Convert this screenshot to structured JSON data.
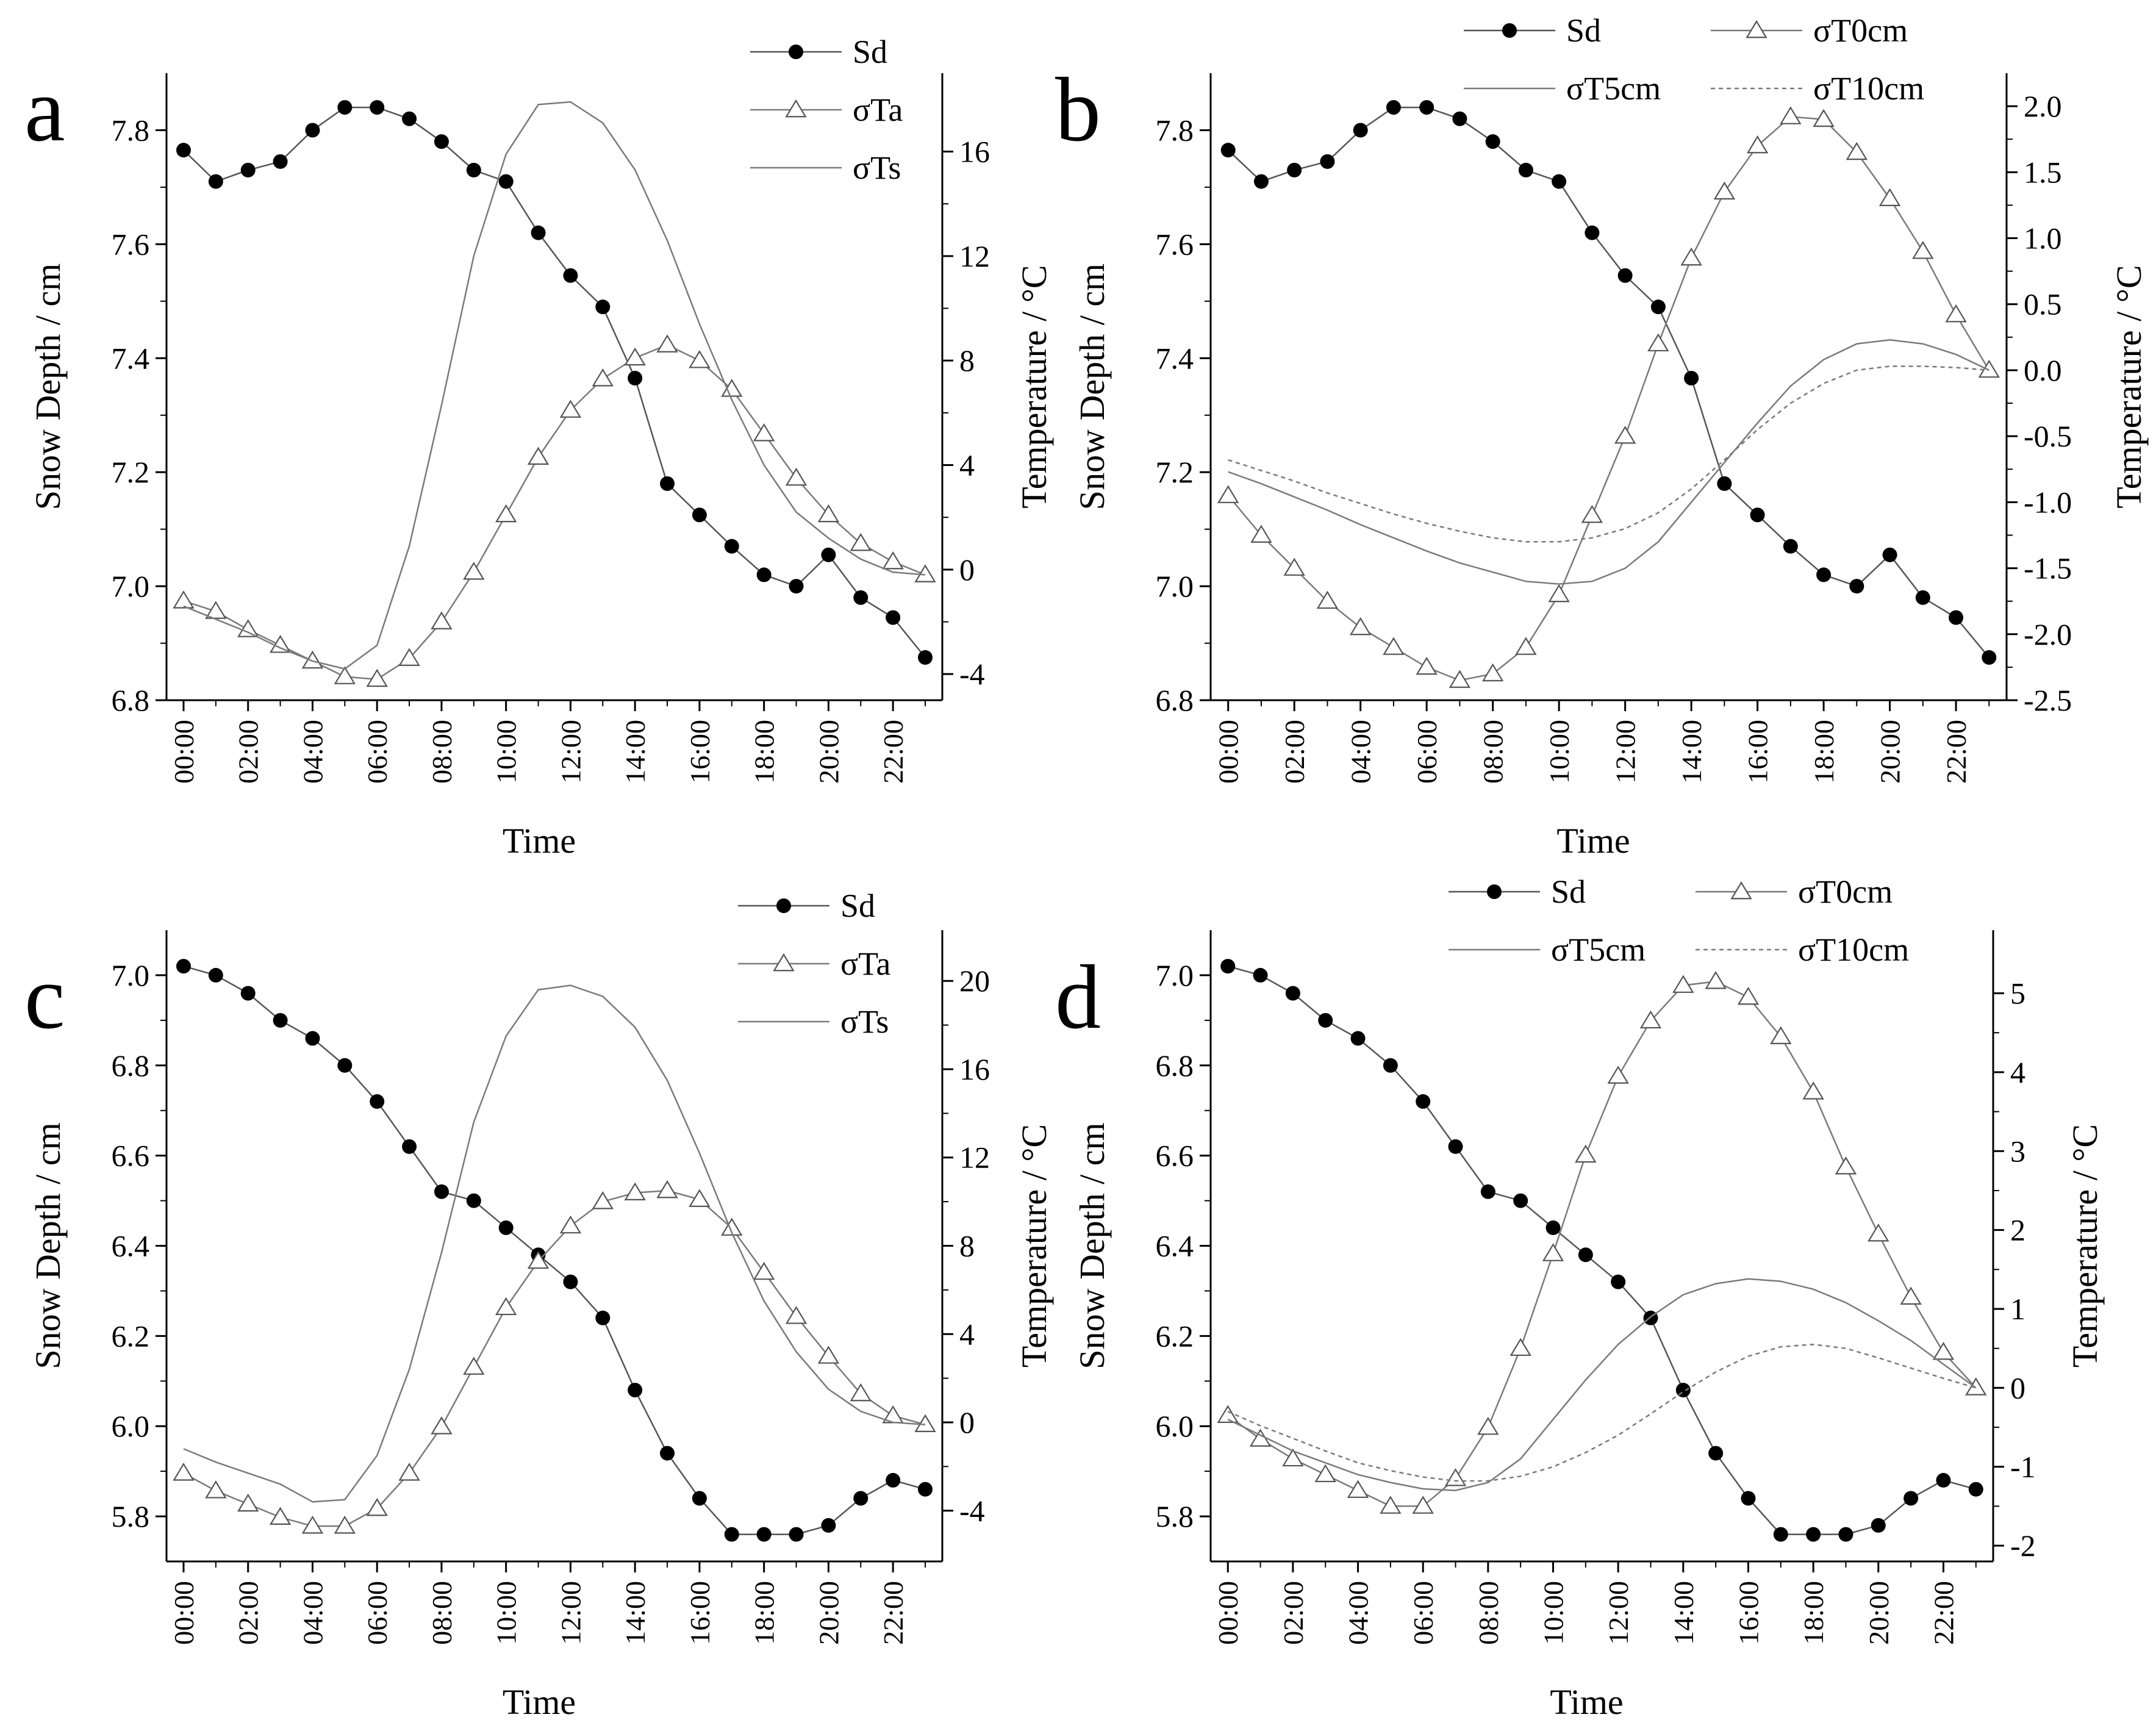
{
  "colors": {
    "axis": "#000000",
    "sd": "#000000",
    "temp_line": "#7a7a7a",
    "marker_fill": "#ffffff"
  },
  "chart_data": [
    {
      "panel": "a",
      "type": "line",
      "xlabel": "Time",
      "ylabel_left": "Snow Depth / cm",
      "ylabel_right": "Temperature / °C",
      "x_ticks": [
        "00:00",
        "02:00",
        "04:00",
        "06:00",
        "08:00",
        "10:00",
        "12:00",
        "14:00",
        "16:00",
        "18:00",
        "20:00",
        "22:00"
      ],
      "left_range": [
        6.8,
        7.9
      ],
      "left_ticks": [
        "6.8",
        "7.0",
        "7.2",
        "7.4",
        "7.6",
        "7.8"
      ],
      "right_range": [
        -5,
        19
      ],
      "right_ticks": [
        "-4",
        "0",
        "4",
        "8",
        "12",
        "16"
      ],
      "legend": [
        "Sd",
        "σTa",
        "σTs"
      ],
      "series": [
        {
          "name": "Sd",
          "axis": "left",
          "style": "dot",
          "values": [
            7.765,
            7.71,
            7.73,
            7.745,
            7.8,
            7.84,
            7.84,
            7.82,
            7.78,
            7.73,
            7.71,
            7.62,
            7.545,
            7.49,
            7.365,
            7.18,
            7.125,
            7.07,
            7.02,
            7.0,
            7.055,
            6.98,
            6.945,
            6.875
          ]
        },
        {
          "name": "σTa",
          "axis": "right",
          "style": "triangle",
          "values": [
            -1.2,
            -1.6,
            -2.3,
            -2.9,
            -3.5,
            -4.1,
            -4.2,
            -3.4,
            -2.0,
            -0.1,
            2.1,
            4.3,
            6.1,
            7.3,
            8.1,
            8.6,
            8.0,
            6.9,
            5.2,
            3.5,
            2.1,
            1.0,
            0.3,
            -0.2
          ]
        },
        {
          "name": "σTs",
          "axis": "right",
          "style": "line",
          "values": [
            -1.4,
            -1.9,
            -2.4,
            -3.0,
            -3.5,
            -3.8,
            -2.9,
            0.9,
            6.3,
            12.0,
            15.9,
            17.8,
            17.9,
            17.1,
            15.3,
            12.6,
            9.4,
            6.5,
            4.0,
            2.2,
            1.2,
            0.4,
            -0.1,
            -0.2
          ]
        }
      ]
    },
    {
      "panel": "b",
      "type": "line",
      "xlabel": "Time",
      "ylabel_left": "Snow Depth / cm",
      "ylabel_right": "Temperature / °C",
      "x_ticks": [
        "00:00",
        "02:00",
        "04:00",
        "06:00",
        "08:00",
        "10:00",
        "12:00",
        "14:00",
        "16:00",
        "18:00",
        "20:00",
        "22:00"
      ],
      "left_range": [
        6.8,
        7.9
      ],
      "left_ticks": [
        "6.8",
        "7.0",
        "7.2",
        "7.4",
        "7.6",
        "7.8"
      ],
      "right_range": [
        -2.5,
        2.25
      ],
      "right_ticks": [
        "-2.5",
        "-2.0",
        "-1.5",
        "-1.0",
        "-0.5",
        "0.0",
        "0.5",
        "1.0",
        "1.5",
        "2.0"
      ],
      "legend": [
        "Sd",
        "σT0cm",
        "σT5cm",
        "σT10cm"
      ],
      "series": [
        {
          "name": "Sd",
          "axis": "left",
          "style": "dot",
          "values": [
            7.765,
            7.71,
            7.73,
            7.745,
            7.8,
            7.84,
            7.84,
            7.82,
            7.78,
            7.73,
            7.71,
            7.62,
            7.545,
            7.49,
            7.365,
            7.18,
            7.125,
            7.07,
            7.02,
            7.0,
            7.055,
            6.98,
            6.945,
            6.875
          ]
        },
        {
          "name": "σT0cm",
          "axis": "right",
          "style": "triangle",
          "values": [
            -0.95,
            -1.25,
            -1.5,
            -1.75,
            -1.95,
            -2.1,
            -2.25,
            -2.35,
            -2.3,
            -2.1,
            -1.7,
            -1.1,
            -0.5,
            0.2,
            0.85,
            1.35,
            1.7,
            1.92,
            1.9,
            1.65,
            1.3,
            0.9,
            0.42,
            0.0
          ]
        },
        {
          "name": "σT5cm",
          "axis": "right",
          "style": "line",
          "values": [
            -0.77,
            -0.86,
            -0.96,
            -1.06,
            -1.17,
            -1.27,
            -1.37,
            -1.46,
            -1.53,
            -1.6,
            -1.62,
            -1.6,
            -1.5,
            -1.3,
            -1.0,
            -0.7,
            -0.4,
            -0.12,
            0.08,
            0.2,
            0.23,
            0.2,
            0.12,
            0.0
          ]
        },
        {
          "name": "σT10cm",
          "axis": "right",
          "style": "dashed",
          "values": [
            -0.68,
            -0.76,
            -0.84,
            -0.93,
            -1.01,
            -1.09,
            -1.16,
            -1.22,
            -1.27,
            -1.3,
            -1.3,
            -1.27,
            -1.2,
            -1.08,
            -0.9,
            -0.68,
            -0.45,
            -0.25,
            -0.1,
            0.0,
            0.03,
            0.03,
            0.02,
            0.0
          ]
        }
      ]
    },
    {
      "panel": "c",
      "type": "line",
      "xlabel": "Time",
      "ylabel_left": "Snow Depth / cm",
      "ylabel_right": "Temperature / °C",
      "x_ticks": [
        "00:00",
        "02:00",
        "04:00",
        "06:00",
        "08:00",
        "10:00",
        "12:00",
        "14:00",
        "16:00",
        "18:00",
        "20:00",
        "22:00"
      ],
      "left_range": [
        5.7,
        7.1
      ],
      "left_ticks": [
        "5.8",
        "6.0",
        "6.2",
        "6.4",
        "6.6",
        "6.8",
        "7.0"
      ],
      "right_range": [
        -6.3,
        22.3
      ],
      "right_ticks": [
        "-4",
        "0",
        "4",
        "8",
        "12",
        "16",
        "20"
      ],
      "legend": [
        "Sd",
        "σTa",
        "σTs"
      ],
      "series": [
        {
          "name": "Sd",
          "axis": "left",
          "style": "dot",
          "values": [
            7.02,
            7.0,
            6.96,
            6.9,
            6.86,
            6.8,
            6.72,
            6.62,
            6.52,
            6.5,
            6.44,
            6.38,
            6.32,
            6.24,
            6.08,
            5.94,
            5.84,
            5.76,
            5.76,
            5.76,
            5.78,
            5.84,
            5.88,
            5.86
          ]
        },
        {
          "name": "σTa",
          "axis": "right",
          "style": "triangle",
          "values": [
            -2.3,
            -3.1,
            -3.7,
            -4.3,
            -4.7,
            -4.7,
            -3.9,
            -2.3,
            -0.2,
            2.5,
            5.2,
            7.3,
            8.9,
            10.0,
            10.4,
            10.5,
            10.1,
            8.8,
            6.8,
            4.8,
            3.0,
            1.3,
            0.3,
            -0.1
          ]
        },
        {
          "name": "σTs",
          "axis": "right",
          "style": "line",
          "values": [
            -1.2,
            -1.8,
            -2.3,
            -2.8,
            -3.6,
            -3.5,
            -1.5,
            2.4,
            7.7,
            13.6,
            17.5,
            19.6,
            19.8,
            19.3,
            17.9,
            15.5,
            12.2,
            8.6,
            5.5,
            3.2,
            1.5,
            0.5,
            0.0,
            -0.1
          ]
        }
      ]
    },
    {
      "panel": "d",
      "type": "line",
      "xlabel": "Time",
      "ylabel_left": "Snow Depth / cm",
      "ylabel_right": "Temperature / °C",
      "x_ticks": [
        "00:00",
        "02:00",
        "04:00",
        "06:00",
        "08:00",
        "10:00",
        "12:00",
        "14:00",
        "16:00",
        "18:00",
        "20:00",
        "22:00"
      ],
      "left_range": [
        5.7,
        7.1
      ],
      "left_ticks": [
        "5.8",
        "6.0",
        "6.2",
        "6.4",
        "6.6",
        "6.8",
        "7.0"
      ],
      "right_range": [
        -2.2,
        5.8
      ],
      "right_ticks": [
        "-2",
        "-1",
        "0",
        "1",
        "2",
        "3",
        "4",
        "5"
      ],
      "legend": [
        "Sd",
        "σT0cm",
        "σT5cm",
        "σT10cm"
      ],
      "series": [
        {
          "name": "Sd",
          "axis": "left",
          "style": "dot",
          "values": [
            7.02,
            7.0,
            6.96,
            6.9,
            6.86,
            6.8,
            6.72,
            6.62,
            6.52,
            6.5,
            6.44,
            6.38,
            6.32,
            6.24,
            6.08,
            5.94,
            5.84,
            5.76,
            5.76,
            5.76,
            5.78,
            5.84,
            5.88,
            5.86
          ]
        },
        {
          "name": "σT0cm",
          "axis": "right",
          "style": "triangle",
          "values": [
            -0.35,
            -0.65,
            -0.9,
            -1.1,
            -1.3,
            -1.5,
            -1.5,
            -1.15,
            -0.5,
            0.5,
            1.7,
            2.95,
            3.95,
            4.65,
            5.1,
            5.15,
            4.95,
            4.45,
            3.75,
            2.8,
            1.95,
            1.15,
            0.45,
            0.0
          ]
        },
        {
          "name": "σT5cm",
          "axis": "right",
          "style": "line",
          "values": [
            -0.4,
            -0.6,
            -0.8,
            -0.95,
            -1.1,
            -1.2,
            -1.28,
            -1.3,
            -1.2,
            -0.9,
            -0.4,
            0.1,
            0.55,
            0.9,
            1.18,
            1.32,
            1.38,
            1.35,
            1.25,
            1.08,
            0.85,
            0.6,
            0.3,
            0.0
          ]
        },
        {
          "name": "σT10cm",
          "axis": "right",
          "style": "dashed",
          "values": [
            -0.3,
            -0.48,
            -0.64,
            -0.8,
            -0.95,
            -1.05,
            -1.13,
            -1.18,
            -1.18,
            -1.12,
            -1.0,
            -0.82,
            -0.6,
            -0.33,
            -0.05,
            0.2,
            0.4,
            0.52,
            0.55,
            0.5,
            0.38,
            0.25,
            0.12,
            0.0
          ]
        }
      ]
    }
  ]
}
